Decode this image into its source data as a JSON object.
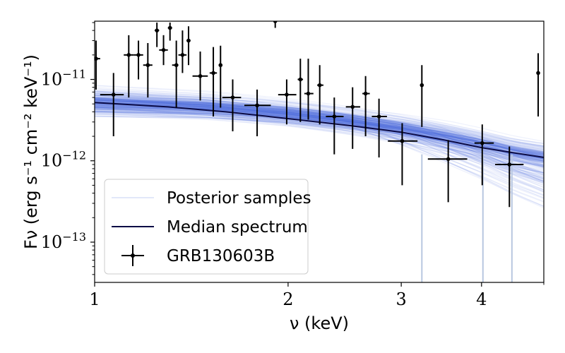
{
  "chart_data": {
    "type": "scatter",
    "title": "",
    "xlabel": "ν (keV)",
    "ylabel": "Fν (erg s⁻¹ cm⁻² keV⁻¹)",
    "xscale": "log",
    "yscale": "log",
    "xlim": [
      1.0,
      5.0
    ],
    "ylim": [
      3.2e-14,
      5.2e-11
    ],
    "xticks": [
      {
        "value": 1,
        "label": "1"
      },
      {
        "value": 2,
        "label": "2"
      },
      {
        "value": 3,
        "label": "3"
      },
      {
        "value": 4,
        "label": "4"
      }
    ],
    "yticks": [
      {
        "value": 1e-13,
        "base": "10",
        "exp": "−13"
      },
      {
        "value": 1e-12,
        "base": "10",
        "exp": "−12"
      },
      {
        "value": 1e-11,
        "base": "10",
        "exp": "−11"
      }
    ],
    "legend": {
      "position": "bottom-left",
      "posterior_label": "Posterior samples",
      "median_label": "Median spectrum",
      "data_label": "GRB130603B"
    },
    "colors": {
      "posterior": "#4163d9",
      "median": "#0b0b45",
      "data": "#000000"
    },
    "median_spectrum": {
      "x": [
        1.0,
        1.3,
        1.6,
        2.0,
        2.5,
        3.0,
        3.5,
        4.0,
        4.5,
        5.0
      ],
      "y": [
        5.2e-12,
        4.6e-12,
        4e-12,
        3.3e-12,
        2.7e-12,
        2.25e-12,
        1.8e-12,
        1.45e-12,
        1.25e-12,
        1.1e-12
      ]
    },
    "posterior_band": {
      "x": [
        1.0,
        1.5,
        2.0,
        2.5,
        3.0,
        3.5,
        4.0,
        4.5,
        5.0
      ],
      "lower": [
        3e-12,
        2.6e-12,
        2.2e-12,
        1.8e-12,
        1.45e-12,
        1.15e-12,
        9e-13,
        7e-13,
        6e-13
      ],
      "upper": [
        9e-12,
        8e-12,
        6.5e-12,
        5.2e-12,
        4.2e-12,
        3.4e-12,
        2.8e-12,
        2.3e-12,
        2e-12
      ]
    },
    "series": [
      {
        "name": "GRB130603B",
        "points": [
          {
            "x": 1.005,
            "xlo": 1.0,
            "xhi": 1.02,
            "y": 1.8e-11,
            "ylo": 7.5e-12,
            "yhi": 3e-11
          },
          {
            "x": 1.07,
            "xlo": 1.02,
            "xhi": 1.11,
            "y": 6.5e-12,
            "ylo": 2e-12,
            "yhi": 1.2e-11
          },
          {
            "x": 1.13,
            "xlo": 1.11,
            "xhi": 1.15,
            "y": 2e-11,
            "ylo": 6e-12,
            "yhi": 3.5e-11
          },
          {
            "x": 1.17,
            "xlo": 1.15,
            "xhi": 1.19,
            "y": 2e-11,
            "ylo": 1e-11,
            "yhi": 3e-11
          },
          {
            "x": 1.21,
            "xlo": 1.19,
            "xhi": 1.23,
            "y": 1.5e-11,
            "ylo": 6e-12,
            "yhi": 2.8e-11
          },
          {
            "x": 1.25,
            "xlo": 1.24,
            "xhi": 1.26,
            "y": 4e-11,
            "ylo": 2.5e-11,
            "yhi": 5e-11
          },
          {
            "x": 1.28,
            "xlo": 1.26,
            "xhi": 1.3,
            "y": 2.3e-11,
            "ylo": 1.5e-11,
            "yhi": 3.5e-11
          },
          {
            "x": 1.31,
            "xlo": 1.3,
            "xhi": 1.32,
            "y": 4.3e-11,
            "ylo": 3e-11,
            "yhi": 5e-11
          },
          {
            "x": 1.34,
            "xlo": 1.32,
            "xhi": 1.35,
            "y": 1.5e-11,
            "ylo": 4.5e-12,
            "yhi": 3e-11
          },
          {
            "x": 1.37,
            "xlo": 1.35,
            "xhi": 1.39,
            "y": 2e-11,
            "ylo": 1.2e-11,
            "yhi": 4e-11
          },
          {
            "x": 1.4,
            "xlo": 1.39,
            "xhi": 1.41,
            "y": 3e-11,
            "ylo": 1.5e-11,
            "yhi": 4.5e-11
          },
          {
            "x": 1.46,
            "xlo": 1.42,
            "xhi": 1.5,
            "y": 1.1e-11,
            "ylo": 5.5e-12,
            "yhi": 2.2e-11
          },
          {
            "x": 1.53,
            "xlo": 1.51,
            "xhi": 1.55,
            "y": 1.2e-11,
            "ylo": 3.5e-12,
            "yhi": 2.5e-11
          },
          {
            "x": 1.57,
            "xlo": 1.56,
            "xhi": 1.58,
            "y": 1.5e-11,
            "ylo": 4.5e-12,
            "yhi": 2.6e-11
          },
          {
            "x": 1.64,
            "xlo": 1.58,
            "xhi": 1.69,
            "y": 6e-12,
            "ylo": 2.3e-12,
            "yhi": 1e-11
          },
          {
            "x": 1.79,
            "xlo": 1.71,
            "xhi": 1.88,
            "y": 4.8e-12,
            "ylo": 2e-12,
            "yhi": 7.5e-12
          },
          {
            "x": 1.91,
            "xlo": 1.91,
            "xhi": 1.91,
            "y": 5.2e-11,
            "ylo": 4.3e-11,
            "yhi": 5.2e-11
          },
          {
            "x": 1.99,
            "xlo": 1.93,
            "xhi": 2.06,
            "y": 6.5e-12,
            "ylo": 2.8e-12,
            "yhi": 1e-11
          },
          {
            "x": 2.09,
            "xlo": 2.07,
            "xhi": 2.11,
            "y": 1e-11,
            "ylo": 3e-12,
            "yhi": 1.8e-11
          },
          {
            "x": 2.15,
            "xlo": 2.12,
            "xhi": 2.19,
            "y": 6.7e-12,
            "ylo": 3.2e-12,
            "yhi": 1.8e-11
          },
          {
            "x": 2.24,
            "xlo": 2.22,
            "xhi": 2.27,
            "y": 8.5e-12,
            "ylo": 2.8e-12,
            "yhi": 1.5e-11
          },
          {
            "x": 2.36,
            "xlo": 2.29,
            "xhi": 2.44,
            "y": 3.5e-12,
            "ylo": 1.2e-12,
            "yhi": 6e-12
          },
          {
            "x": 2.52,
            "xlo": 2.46,
            "xhi": 2.59,
            "y": 4.6e-12,
            "ylo": 1.4e-12,
            "yhi": 8e-12
          },
          {
            "x": 2.64,
            "xlo": 2.61,
            "xhi": 2.68,
            "y": 6.7e-12,
            "ylo": 2e-12,
            "yhi": 1.1e-11
          },
          {
            "x": 2.77,
            "xlo": 2.7,
            "xhi": 2.85,
            "y": 3.5e-12,
            "ylo": 1.1e-12,
            "yhi": 5.8e-12
          },
          {
            "x": 3.01,
            "xlo": 2.86,
            "xhi": 3.18,
            "y": 1.75e-12,
            "ylo": 5e-13,
            "yhi": 2.9e-12
          },
          {
            "x": 3.23,
            "xlo": 3.21,
            "xhi": 3.25,
            "y": 8.5e-12,
            "ylo": 2.6e-12,
            "yhi": 1.5e-11
          },
          {
            "x": 3.55,
            "xlo": 3.3,
            "xhi": 3.8,
            "y": 1.05e-12,
            "ylo": 3.1e-13,
            "yhi": 1.8e-12
          },
          {
            "x": 4.01,
            "xlo": 3.9,
            "xhi": 4.18,
            "y": 1.65e-12,
            "ylo": 5e-13,
            "yhi": 2.8e-12
          },
          {
            "x": 4.42,
            "xlo": 4.2,
            "xhi": 4.65,
            "y": 9e-13,
            "ylo": 2.7e-13,
            "yhi": 1.5e-12
          },
          {
            "x": 4.9,
            "xlo": 4.89,
            "xhi": 4.91,
            "y": 1.2e-11,
            "ylo": 3.5e-12,
            "yhi": 2.1e-11
          }
        ]
      }
    ],
    "dropouts_x": [
      3.23,
      4.02,
      4.46
    ]
  }
}
